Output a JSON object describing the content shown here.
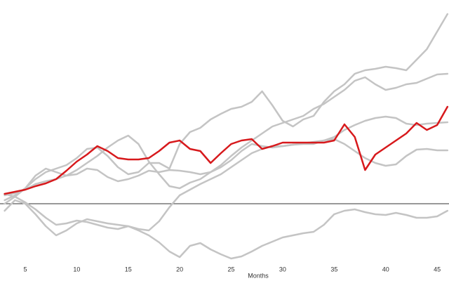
{
  "chart_data": {
    "type": "line",
    "x_label": "Months",
    "x": [
      3,
      4,
      5,
      6,
      7,
      8,
      9,
      10,
      11,
      12,
      13,
      14,
      15,
      16,
      17,
      18,
      19,
      20,
      21,
      22,
      23,
      24,
      25,
      26,
      27,
      28,
      29,
      30,
      31,
      32,
      33,
      34,
      35,
      36,
      37,
      38,
      39,
      40,
      41,
      42,
      43,
      44,
      45,
      46
    ],
    "series": [
      {
        "color": "#c4c4c4",
        "values": [
          0.5,
          1.2,
          2.2,
          3.5,
          4.5,
          5.0,
          5.5,
          6.5,
          7.8,
          8.0,
          6.8,
          5.2,
          4.2,
          4.5,
          5.8,
          5.8,
          5.0,
          8.5,
          10.2,
          10.8,
          12.0,
          12.8,
          13.5,
          13.8,
          14.5,
          16.0,
          14.0,
          11.8,
          11.0,
          12.0,
          12.5,
          14.5,
          16.0,
          17.0,
          18.5,
          19.0,
          19.2,
          19.5,
          19.3,
          19.0,
          20.5,
          22.0,
          24.5,
          27.0
        ]
      },
      {
        "color": "#c4c4c4",
        "values": [
          0,
          1.0,
          2.2,
          4.0,
          5.0,
          4.5,
          4.0,
          4.8,
          5.8,
          6.8,
          8.0,
          9.0,
          9.7,
          8.5,
          6.0,
          4.2,
          2.5,
          2.2,
          3.0,
          3.5,
          4.5,
          5.5,
          6.8,
          8.0,
          9.0,
          10.0,
          11.0,
          11.5,
          12.0,
          12.5,
          13.5,
          14.2,
          15.2,
          16.2,
          17.5,
          18.0,
          17.0,
          16.2,
          16.5,
          17.0,
          17.2,
          17.8,
          18.4,
          18.5
        ]
      },
      {
        "color": "#c4c4c4",
        "values": [
          1.2,
          1.5,
          2.0,
          2.8,
          3.2,
          3.5,
          4.0,
          4.2,
          5.0,
          4.8,
          3.8,
          3.2,
          3.5,
          4.0,
          4.7,
          4.5,
          4.8,
          4.7,
          4.5,
          4.2,
          4.5,
          5.2,
          6.2,
          7.5,
          8.5,
          8.2,
          8.0,
          8.2,
          8.4,
          8.5,
          8.5,
          9.0,
          9.5,
          10.5,
          11.2,
          11.8,
          12.2,
          12.4,
          12.2,
          11.4,
          11.2,
          11.4,
          11.5,
          11.6
        ]
      },
      {
        "color": "#c4c4c4",
        "values": [
          -1.0,
          0.5,
          0,
          -1.5,
          -3.2,
          -4.5,
          -3.8,
          -2.8,
          -2.2,
          -2.5,
          -2.8,
          -3.0,
          -3.2,
          -3.6,
          -3.8,
          -2.5,
          -0.5,
          1.2,
          2.0,
          2.8,
          3.5,
          4.2,
          5.2,
          6.2,
          7.2,
          7.8,
          8.2,
          8.2,
          8.4,
          8.6,
          8.8,
          9.0,
          9.2,
          8.5,
          7.5,
          6.5,
          5.8,
          5.4,
          5.6,
          6.8,
          7.7,
          7.8,
          7.6,
          7.6
        ]
      },
      {
        "color": "#c4c4c4",
        "values": [
          1.4,
          1.0,
          0.2,
          -0.8,
          -2.0,
          -3.0,
          -2.8,
          -2.4,
          -2.6,
          -3.0,
          -3.4,
          -3.6,
          -3.2,
          -3.8,
          -4.5,
          -5.5,
          -6.8,
          -7.6,
          -6.0,
          -5.6,
          -6.5,
          -7.2,
          -7.8,
          -7.5,
          -6.8,
          -6.0,
          -5.4,
          -4.8,
          -4.5,
          -4.2,
          -4.0,
          -3.0,
          -1.5,
          -1.0,
          -0.8,
          -1.2,
          -1.5,
          -1.6,
          -1.3,
          -1.6,
          -2.0,
          -2.0,
          -1.8,
          -1.0
        ]
      },
      {
        "color": "#d7191c",
        "values": [
          1.4,
          1.7,
          2.0,
          2.5,
          2.9,
          3.5,
          4.7,
          6.0,
          7.0,
          8.2,
          7.5,
          6.5,
          6.3,
          6.3,
          6.5,
          7.5,
          8.7,
          9.0,
          7.8,
          7.5,
          5.8,
          7.2,
          8.5,
          9.0,
          9.2,
          7.8,
          8.2,
          8.7,
          8.7,
          8.7,
          8.7,
          8.7,
          9.0,
          11.3,
          9.5,
          4.8,
          7.0,
          8.0,
          9.0,
          10.0,
          11.5,
          10.5,
          11.2,
          13.8
        ]
      }
    ],
    "reference_line": 0,
    "reference_color": "#333333",
    "xlim": [
      2.55,
      46.15
    ],
    "ylim": [
      -8.5,
      29
    ],
    "xticks": [
      5,
      10,
      15,
      20,
      25,
      30,
      35,
      40,
      45
    ]
  }
}
